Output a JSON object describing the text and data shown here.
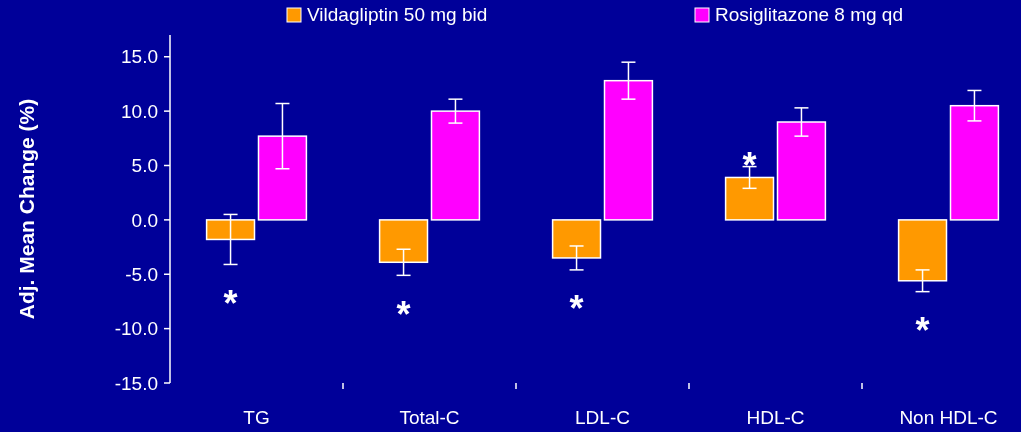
{
  "chart_data": {
    "type": "bar",
    "ylabel": "Adj. Mean Change (%)",
    "categories": [
      "TG",
      "Total-C",
      "LDL-C",
      "HDL-C",
      "Non HDL-C"
    ],
    "series": [
      {
        "name": "Vildagliptin 50 mg bid",
        "color": "#ff9900",
        "values": [
          -1.8,
          -3.9,
          -3.5,
          3.9,
          -5.6
        ],
        "errors": [
          2.3,
          1.2,
          1.1,
          1.0,
          1.0
        ]
      },
      {
        "name": "Rosiglitazone 8 mg qd",
        "color": "#ff00ff",
        "values": [
          7.7,
          10.0,
          12.8,
          9.0,
          10.5
        ],
        "errors": [
          3.0,
          1.1,
          1.7,
          1.3,
          1.4
        ]
      }
    ],
    "ylim": [
      -15,
      17
    ],
    "yticks": [
      {
        "value": -15,
        "label": "-15.0"
      },
      {
        "value": -10,
        "label": "-10.0"
      },
      {
        "value": -5,
        "label": "-5.0"
      },
      {
        "value": 0,
        "label": "0.0"
      },
      {
        "value": 5,
        "label": "5.0"
      },
      {
        "value": 10,
        "label": "10.0"
      },
      {
        "value": 15,
        "label": "15.0"
      }
    ],
    "annotations": [
      "*",
      "*",
      "*",
      "*",
      "*"
    ],
    "grid": false,
    "legend": "top"
  }
}
